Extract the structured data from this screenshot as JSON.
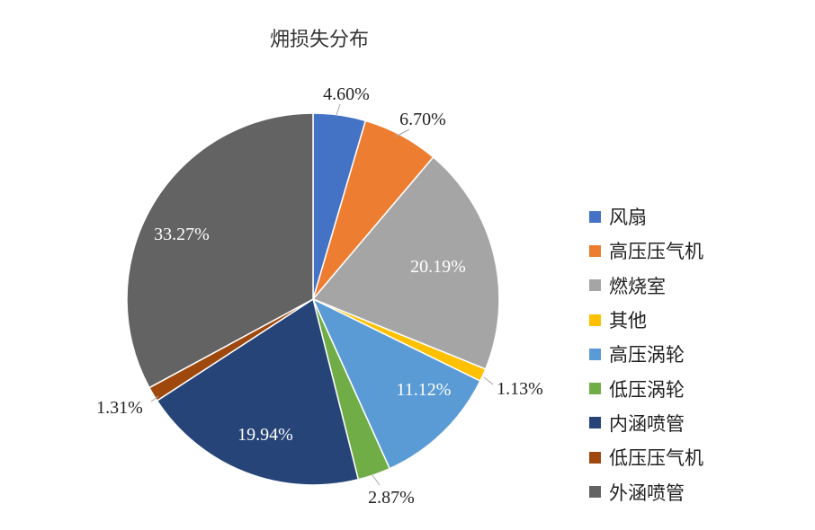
{
  "chart_data": {
    "type": "pie",
    "title": "㶲损失分布",
    "categories": [
      "风扇",
      "高压压气机",
      "燃烧室",
      "其他",
      "高压涡轮",
      "低压涡轮",
      "内涵喷管",
      "低压压气机",
      "外涵喷管"
    ],
    "values": [
      4.6,
      6.7,
      20.19,
      1.13,
      11.12,
      2.87,
      19.94,
      1.31,
      33.27
    ],
    "labels": [
      "4.60%",
      "6.70%",
      "20.19%",
      "1.13%",
      "11.12%",
      "2.87%",
      "19.94%",
      "1.31%",
      "33.27%"
    ],
    "colors": [
      "#4472C4",
      "#ED7D31",
      "#A5A5A5",
      "#FFC000",
      "#5B9BD5",
      "#70AD47",
      "#264478",
      "#9E480E",
      "#636363"
    ],
    "start_angle": "top, clockwise",
    "legend": "right"
  }
}
